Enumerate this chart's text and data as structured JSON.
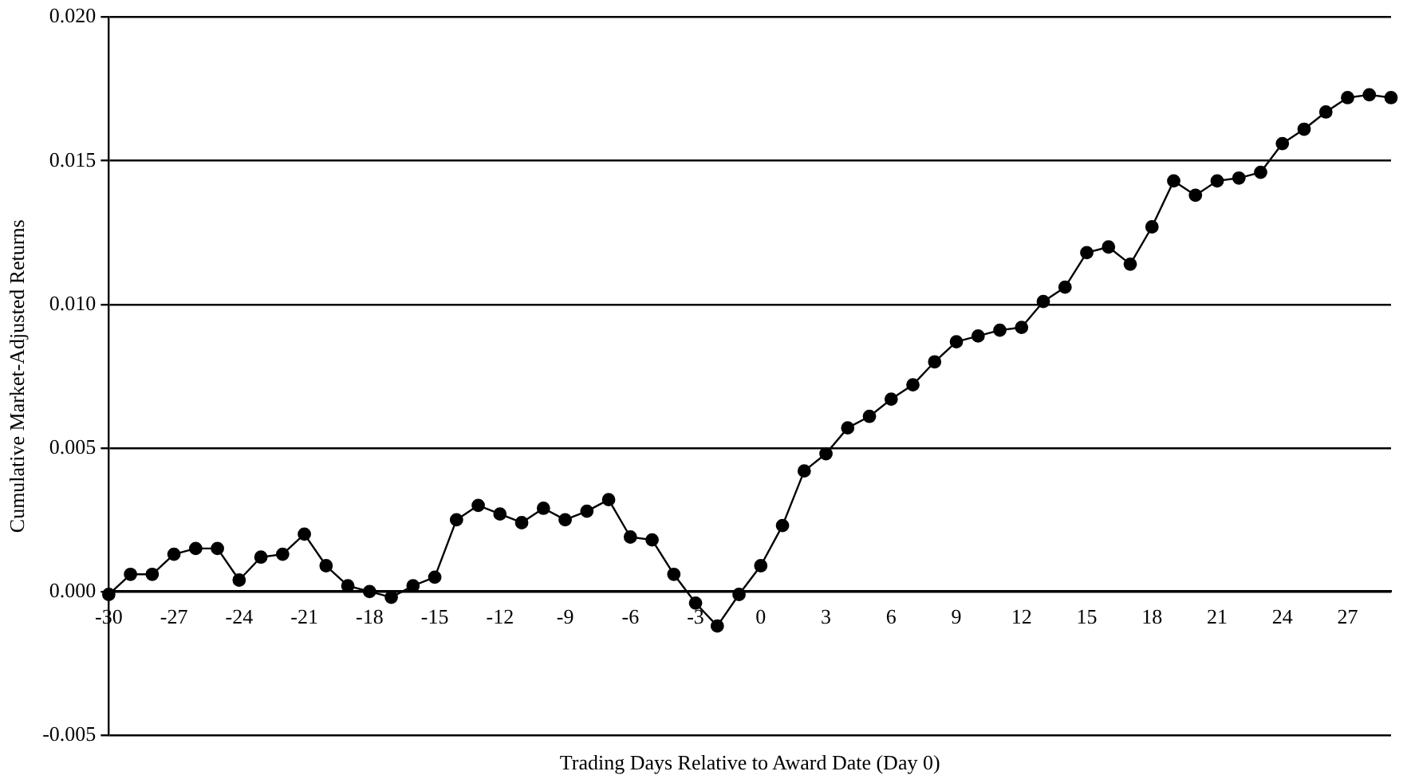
{
  "chart_data": {
    "type": "line",
    "xlabel": "Trading Days Relative to Award Date (Day 0)",
    "ylabel": "Cumulative Market-Adjusted Returns",
    "categories": [
      "-30",
      null,
      null,
      "-27",
      null,
      null,
      "-24",
      null,
      null,
      "-21",
      null,
      null,
      "-18",
      null,
      null,
      "-15",
      null,
      null,
      "-12",
      null,
      null,
      "-9",
      null,
      null,
      "-6",
      null,
      null,
      "-3",
      null,
      null,
      "0",
      null,
      null,
      "3",
      null,
      null,
      "6",
      null,
      null,
      "9",
      null,
      null,
      "12",
      null,
      null,
      "15",
      null,
      null,
      "18",
      null,
      null,
      "21",
      null,
      null,
      "24",
      null,
      null,
      "27",
      null,
      null
    ],
    "series": [
      {
        "color": "#000000",
        "values": [
          -0.0001,
          0.0006,
          0.0006,
          0.0013,
          0.0015,
          0.0015,
          0.0004,
          0.0012,
          0.0013,
          0.002,
          0.0009,
          0.0002,
          0.0,
          -0.0002,
          0.0002,
          0.0005,
          0.0025,
          0.003,
          0.0027,
          0.0024,
          0.0029,
          0.0025,
          0.0028,
          0.0032,
          0.0019,
          0.0018,
          0.0006,
          -0.0004,
          -0.0012,
          -0.0001,
          0.0009,
          0.0023,
          0.0042,
          0.0048,
          0.0057,
          0.0061,
          0.0067,
          0.0072,
          0.008,
          0.0087,
          0.0089,
          0.0091,
          0.0092,
          0.0101,
          0.0106,
          0.0118,
          0.012,
          0.0114,
          0.0127,
          0.0143,
          0.0138,
          0.0143,
          0.0144,
          0.0146,
          0.0156,
          0.0161,
          0.0167,
          0.0172,
          0.0173,
          0.0172
        ]
      }
    ],
    "ylim": [
      -0.005,
      0.02
    ],
    "yticks": [
      {
        "value": -0.005,
        "label": "-0.005"
      },
      {
        "value": 0,
        "label": "0.000"
      },
      {
        "value": 0.005,
        "label": "0.005"
      },
      {
        "value": 0.01,
        "label": "0.010"
      },
      {
        "value": 0.015,
        "label": "0.015"
      },
      {
        "value": 0.02,
        "label": "0.020"
      }
    ],
    "grid": "y",
    "legend": false,
    "marker": "circle",
    "line_style": "solid"
  }
}
